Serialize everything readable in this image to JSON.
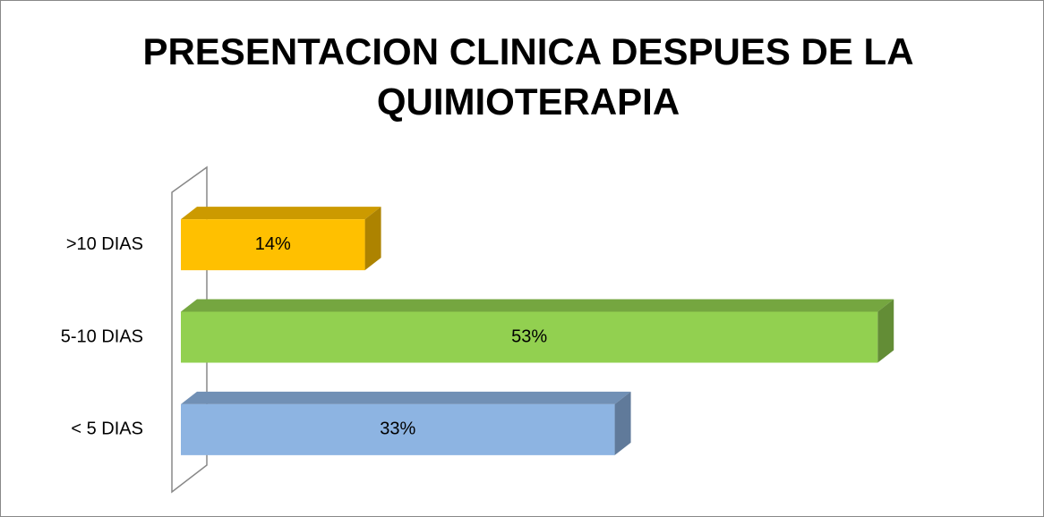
{
  "chart_data": {
    "type": "bar",
    "orientation": "horizontal",
    "three_d": true,
    "title": "PRESENTACION CLINICA DESPUES DE LA QUIMIOTERAPIA",
    "categories": [
      "< 5 DIAS",
      "5-10 DIAS",
      ">10 DIAS"
    ],
    "values": [
      33,
      53,
      14
    ],
    "value_labels": [
      "33%",
      "53%",
      "14%"
    ],
    "colors": [
      "#8DB4E2",
      "#92D050",
      "#FFC000"
    ],
    "xlim": [
      0,
      60
    ]
  }
}
